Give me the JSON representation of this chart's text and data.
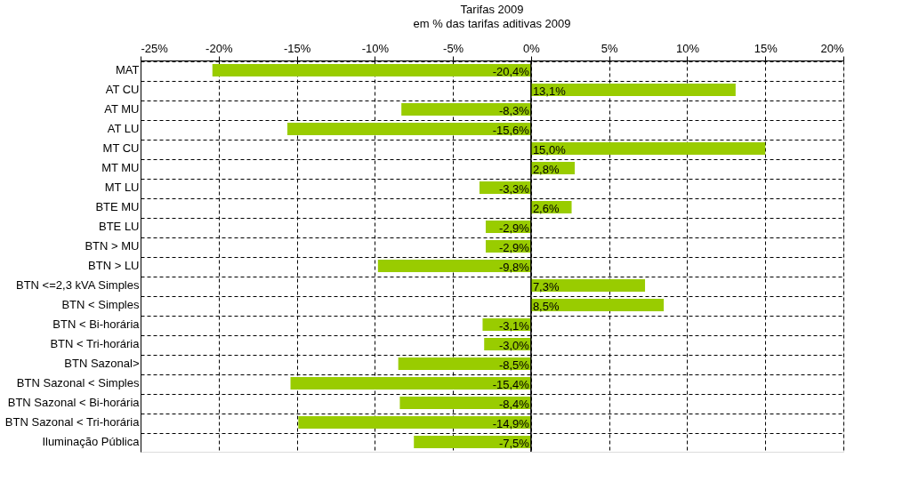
{
  "chart_data": {
    "type": "bar",
    "orientation": "horizontal",
    "title": "Tarifas 2009",
    "subtitle": "em % das tarifas aditivas 2009",
    "categories": [
      "MAT",
      "AT CU",
      "AT MU",
      "AT LU",
      "MT CU",
      "MT MU",
      "MT LU",
      "BTE MU",
      "BTE LU",
      "BTN > MU",
      "BTN > LU",
      "BTN <=2,3 kVA Simples",
      "BTN < Simples",
      "BTN < Bi-horária",
      "BTN < Tri-horária",
      "BTN Sazonal>",
      "BTN Sazonal < Simples",
      "BTN Sazonal < Bi-horária",
      "BTN Sazonal < Tri-horária",
      "Iluminação Pública"
    ],
    "values": [
      -20.4,
      13.1,
      -8.3,
      -15.6,
      15.0,
      2.8,
      -3.3,
      2.6,
      -2.9,
      -2.9,
      -9.8,
      7.3,
      8.5,
      -3.1,
      -3.0,
      -8.5,
      -15.4,
      -8.4,
      -14.9,
      -7.5
    ],
    "value_labels": [
      "-20,4%",
      "13,1%",
      "-8,3%",
      "-15,6%",
      "15,0%",
      "2,8%",
      "-3,3%",
      "2,6%",
      "-2,9%",
      "-2,9%",
      "-9,8%",
      "7,3%",
      "8,5%",
      "-3,1%",
      "-3,0%",
      "-8,5%",
      "-15,4%",
      "-8,4%",
      "-14,9%",
      "-7,5%"
    ],
    "color": "#99cc00",
    "xlim": [
      -25,
      20
    ],
    "xticks": [
      {
        "value": -25,
        "label": "-25%"
      },
      {
        "value": -20,
        "label": "-20%"
      },
      {
        "value": -15,
        "label": "-15%"
      },
      {
        "value": -10,
        "label": "-10%"
      },
      {
        "value": -5,
        "label": "-5%"
      },
      {
        "value": 0,
        "label": "0%"
      },
      {
        "value": 5,
        "label": "5%"
      },
      {
        "value": 10,
        "label": "10%"
      },
      {
        "value": 15,
        "label": "15%"
      },
      {
        "value": 20,
        "label": "20%"
      }
    ],
    "grid": true
  }
}
